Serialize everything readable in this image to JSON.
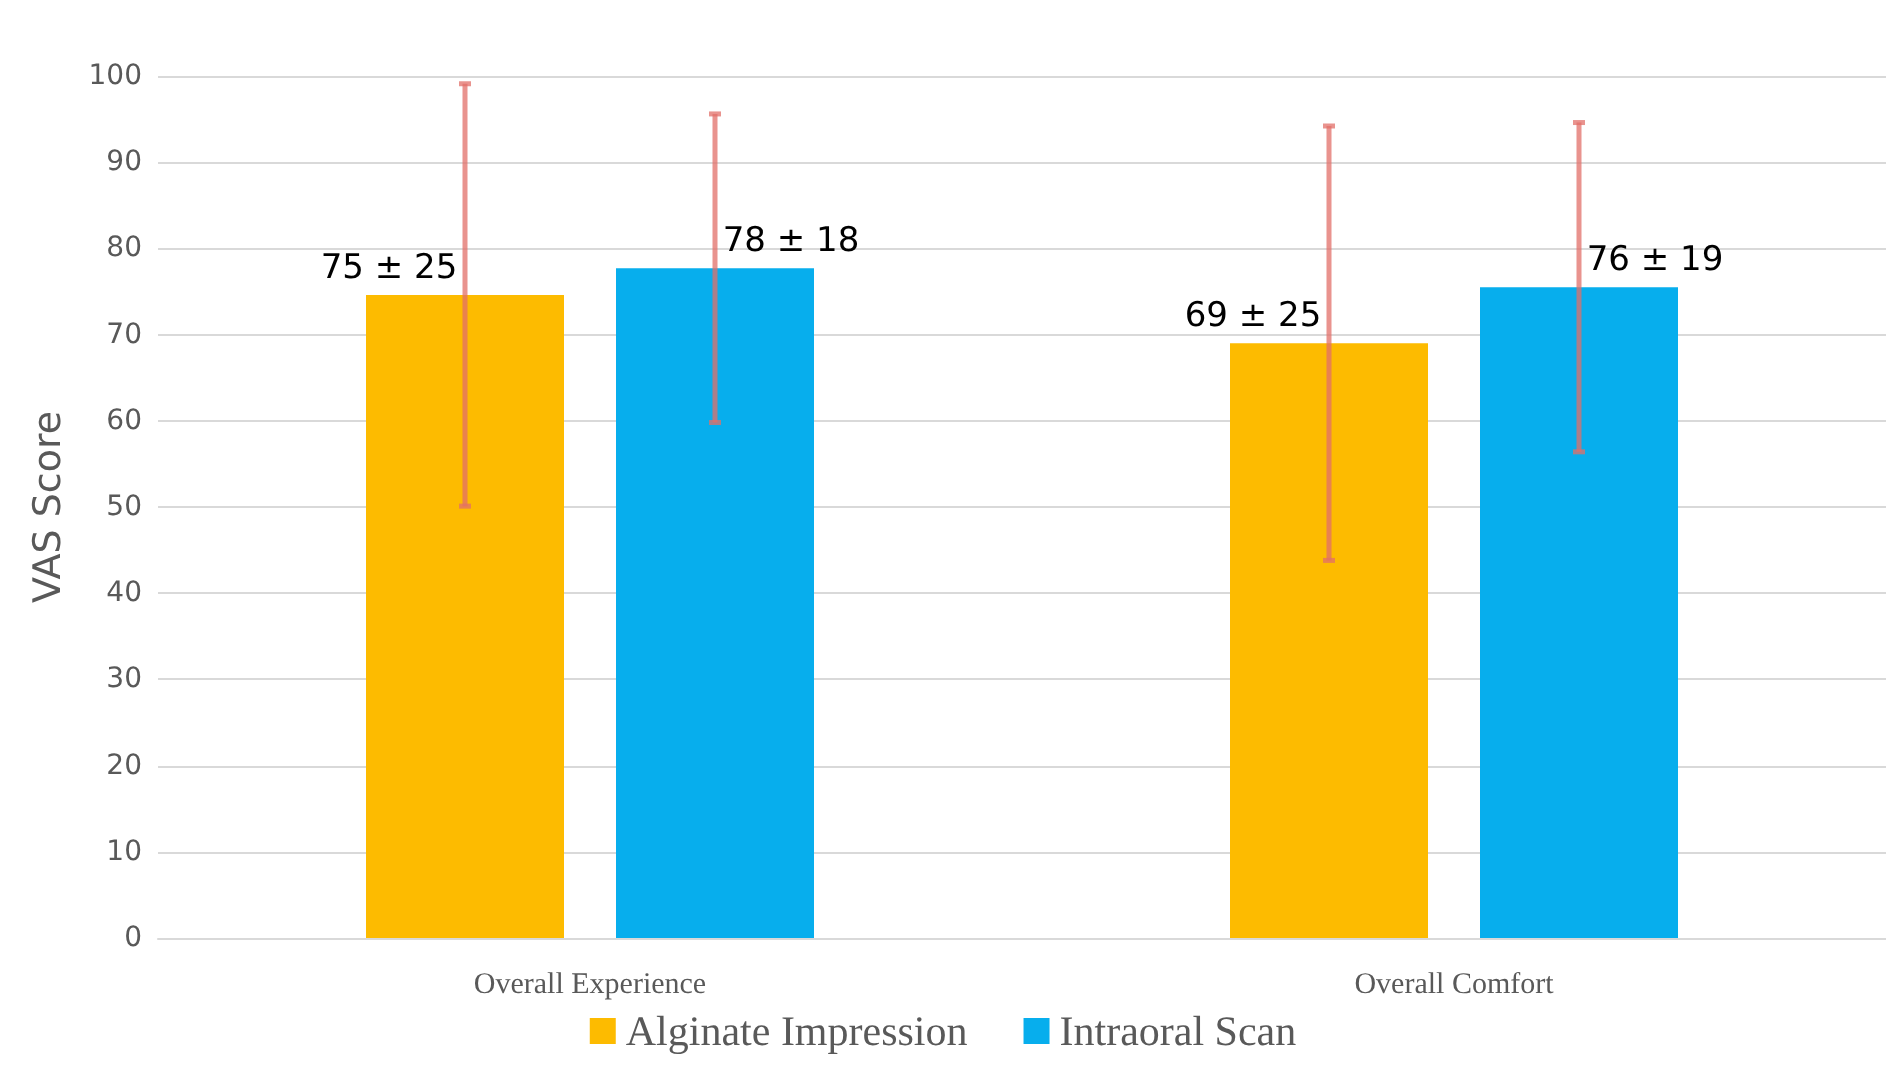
{
  "chart_data": {
    "type": "bar",
    "ylabel": "VAS Score",
    "categories": [
      "Overall Experience",
      "Overall Comfort"
    ],
    "series": [
      {
        "name": "Alginate Impression",
        "color": "#fdbb00",
        "values": [
          74.6,
          69.0
        ],
        "errors": [
          24.5,
          25.2
        ],
        "value_labels": [
          "75 ± 25",
          "69 ± 25"
        ]
      },
      {
        "name": "Intraoral Scan",
        "color": "#07aeed",
        "values": [
          77.7,
          75.5
        ],
        "errors": [
          17.9,
          19.1
        ],
        "value_labels": [
          "78 ± 18",
          "76 ± 19"
        ]
      }
    ],
    "ylim": [
      0,
      100
    ],
    "yticks": [
      0,
      10,
      20,
      30,
      40,
      50,
      60,
      70,
      80,
      90,
      100
    ],
    "grid": "y",
    "legend": "bottom"
  }
}
